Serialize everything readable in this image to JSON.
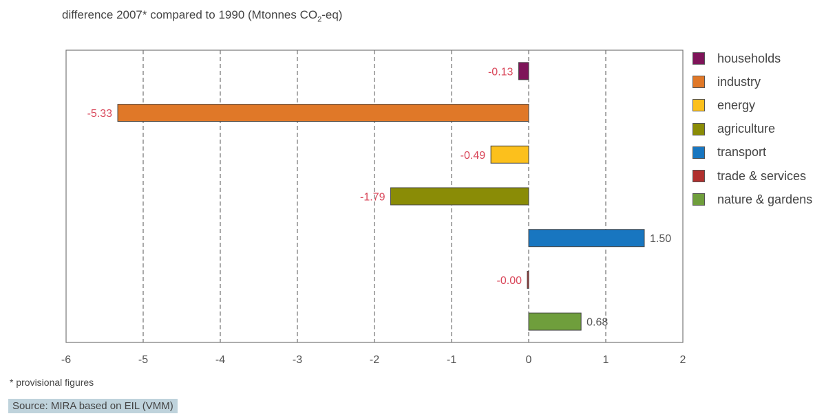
{
  "chart_data": {
    "type": "bar",
    "orientation": "horizontal",
    "title": "difference 2007* compared to 1990 (Mtonnes  CO",
    "title_subscript": "2",
    "title_suffix": "-eq)",
    "categories": [
      "households",
      "industry",
      "energy",
      "agriculture",
      "transport",
      "trade & services",
      "nature & gardens"
    ],
    "values": [
      -0.13,
      -5.33,
      -0.49,
      -1.79,
      1.5,
      -0.005,
      0.68
    ],
    "value_labels": [
      "-0.13",
      "-5.33",
      "-0.49",
      "-1.79",
      "1.50",
      "-0.00",
      "0.68"
    ],
    "colors": [
      "#7e1459",
      "#e07828",
      "#fcc01c",
      "#8a8c06",
      "#1876c0",
      "#b0302e",
      "#6f9e3c"
    ],
    "negative_label_color": "#d9475a",
    "positive_label_color": "#555555",
    "xlim": [
      -6,
      2
    ],
    "xticks": [
      -6,
      -5,
      -4,
      -3,
      -2,
      -1,
      0,
      1,
      2
    ],
    "xtick_labels": [
      "-6",
      "-5",
      "-4",
      "-3",
      "-2",
      "-1",
      "0",
      "1",
      "2"
    ],
    "grid": "vertical dashed",
    "legend_position": "right"
  },
  "footnote": "* provisional figures",
  "source": "Source: MIRA based on EIL (VMM)"
}
